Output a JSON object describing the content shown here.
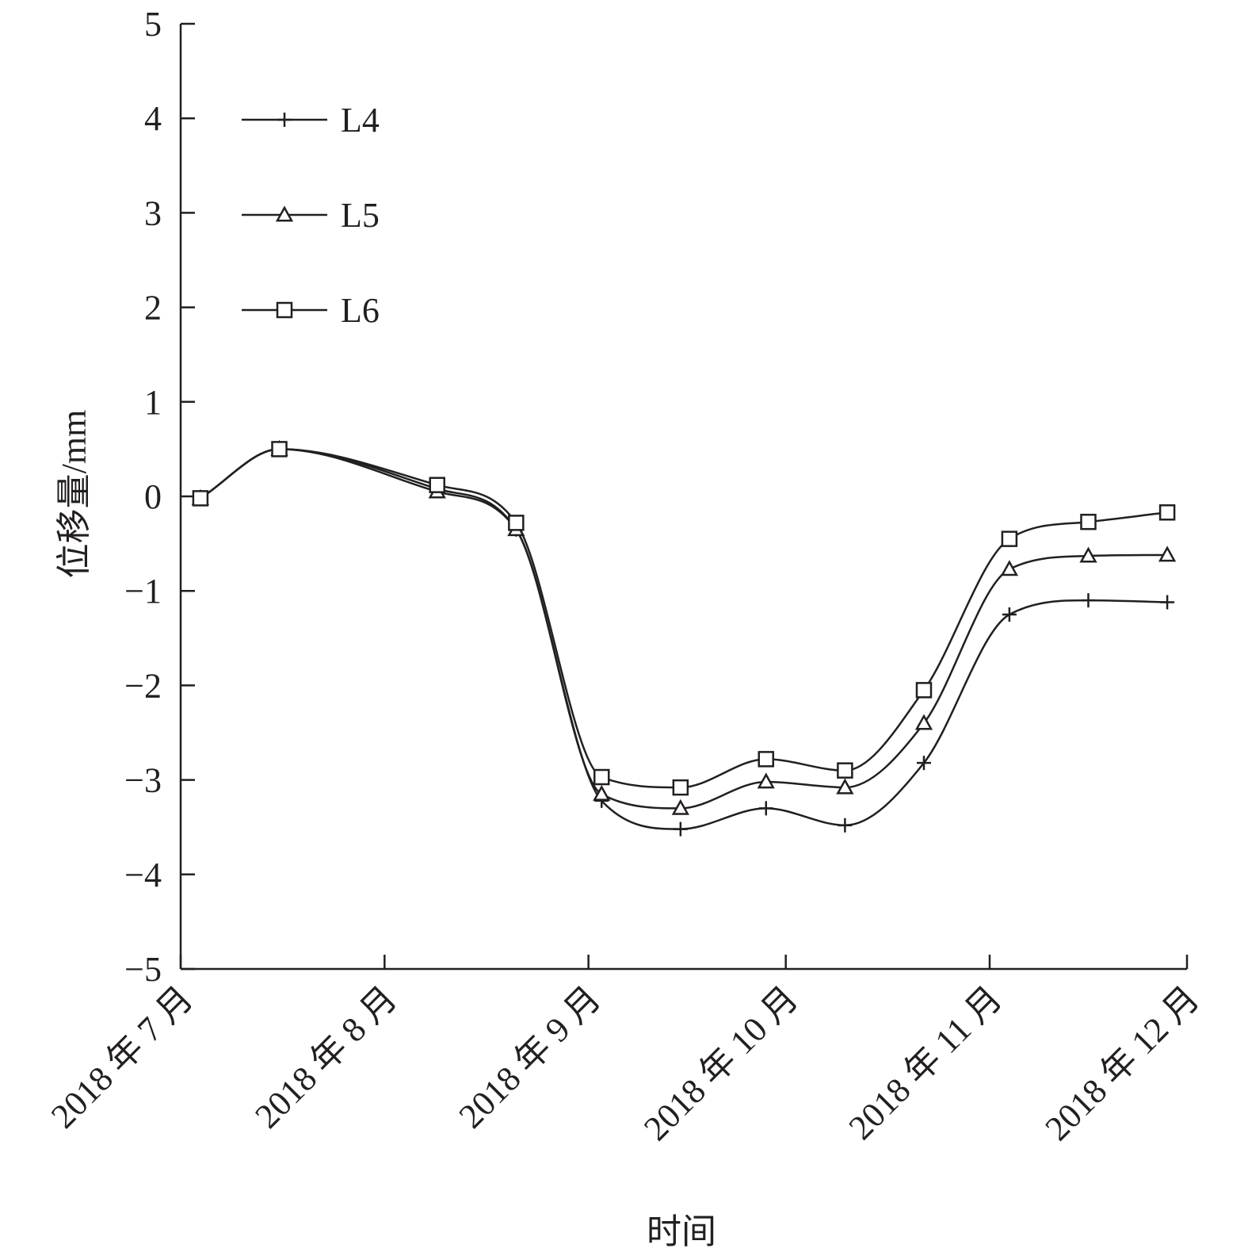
{
  "chart_data": {
    "type": "line",
    "xlabel": "时间",
    "ylabel": "位移量/mm",
    "ylim": [
      -5,
      5
    ],
    "yticks": [
      5,
      4,
      3,
      2,
      1,
      0,
      -1,
      -2,
      -3,
      -4,
      -5
    ],
    "ytick_labels": [
      "5",
      "4",
      "3",
      "2",
      "1",
      "0",
      "−1",
      "−2",
      "−3",
      "−4",
      "−5"
    ],
    "xticks": [
      "2018-07-01",
      "2018-08-01",
      "2018-09-01",
      "2018-10-01",
      "2018-11-01",
      "2018-12-01"
    ],
    "xtick_labels": [
      "2018 年 7 月",
      "2018 年 8 月",
      "2018 年 9 月",
      "2018 年 10 月",
      "2018 年 11 月",
      "2018 年 12 月"
    ],
    "legend_position": "top-left",
    "grid": false,
    "line_color": "#231f20",
    "series": [
      {
        "name": "L4",
        "marker": "plus",
        "marked_points": [
          {
            "x": "2018-07-04",
            "y": -0.02
          },
          {
            "x": "2018-07-16",
            "y": 0.5
          },
          {
            "x": "2018-08-09",
            "y": 0.08
          },
          {
            "x": "2018-08-21",
            "y": -0.35
          },
          {
            "x": "2018-09-03",
            "y": -3.22
          },
          {
            "x": "2018-09-15",
            "y": -3.52
          },
          {
            "x": "2018-09-28",
            "y": -3.3
          },
          {
            "x": "2018-10-10",
            "y": -3.48
          },
          {
            "x": "2018-10-22",
            "y": -2.82
          },
          {
            "x": "2018-11-04",
            "y": -1.25
          },
          {
            "x": "2018-11-16",
            "y": -1.1
          },
          {
            "x": "2018-11-28",
            "y": -1.12
          }
        ]
      },
      {
        "name": "L5",
        "marker": "triangle",
        "marked_points": [
          {
            "x": "2018-07-04",
            "y": -0.02
          },
          {
            "x": "2018-07-16",
            "y": 0.5
          },
          {
            "x": "2018-08-09",
            "y": 0.05
          },
          {
            "x": "2018-08-21",
            "y": -0.35
          },
          {
            "x": "2018-09-03",
            "y": -3.15
          },
          {
            "x": "2018-09-15",
            "y": -3.3
          },
          {
            "x": "2018-09-28",
            "y": -3.02
          },
          {
            "x": "2018-10-10",
            "y": -3.08
          },
          {
            "x": "2018-10-22",
            "y": -2.4
          },
          {
            "x": "2018-11-04",
            "y": -0.77
          },
          {
            "x": "2018-11-16",
            "y": -0.63
          },
          {
            "x": "2018-11-28",
            "y": -0.62
          }
        ]
      },
      {
        "name": "L6",
        "marker": "square",
        "marked_points": [
          {
            "x": "2018-07-04",
            "y": -0.02
          },
          {
            "x": "2018-07-16",
            "y": 0.5
          },
          {
            "x": "2018-08-09",
            "y": 0.12
          },
          {
            "x": "2018-08-21",
            "y": -0.28
          },
          {
            "x": "2018-09-03",
            "y": -2.97
          },
          {
            "x": "2018-09-15",
            "y": -3.08
          },
          {
            "x": "2018-09-28",
            "y": -2.78
          },
          {
            "x": "2018-10-10",
            "y": -2.9
          },
          {
            "x": "2018-10-22",
            "y": -2.05
          },
          {
            "x": "2018-11-04",
            "y": -0.45
          },
          {
            "x": "2018-11-16",
            "y": -0.27
          },
          {
            "x": "2018-11-28",
            "y": -0.17
          }
        ]
      }
    ]
  }
}
